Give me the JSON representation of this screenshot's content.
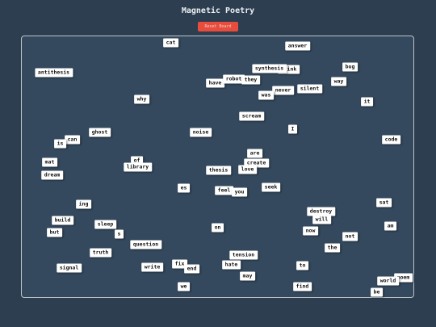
{
  "header": {
    "title": "Magnetic Poetry",
    "reset_button": "Reset Board"
  },
  "words": [
    "cat",
    "answer",
    "think",
    "synthesis",
    "bug",
    "antithesis",
    "have",
    "robot",
    "they",
    "way",
    "silent",
    "never",
    "was",
    "why",
    "it",
    "scream",
    "ghost",
    "noise",
    "I",
    "can",
    "is",
    "code",
    "are",
    "of",
    "library",
    "create",
    "mat",
    "thesis",
    "love",
    "dream",
    "es",
    "seek",
    "feel",
    "you",
    "ing",
    "sat",
    "destroy",
    "will",
    "build",
    "sleep",
    "am",
    "on",
    "now",
    "but",
    "s",
    "not",
    "question",
    "the",
    "truth",
    "tension",
    "fix",
    "hate",
    "to",
    "signal",
    "write",
    "end",
    "may",
    "poem",
    "world",
    "we",
    "find",
    "be"
  ]
}
